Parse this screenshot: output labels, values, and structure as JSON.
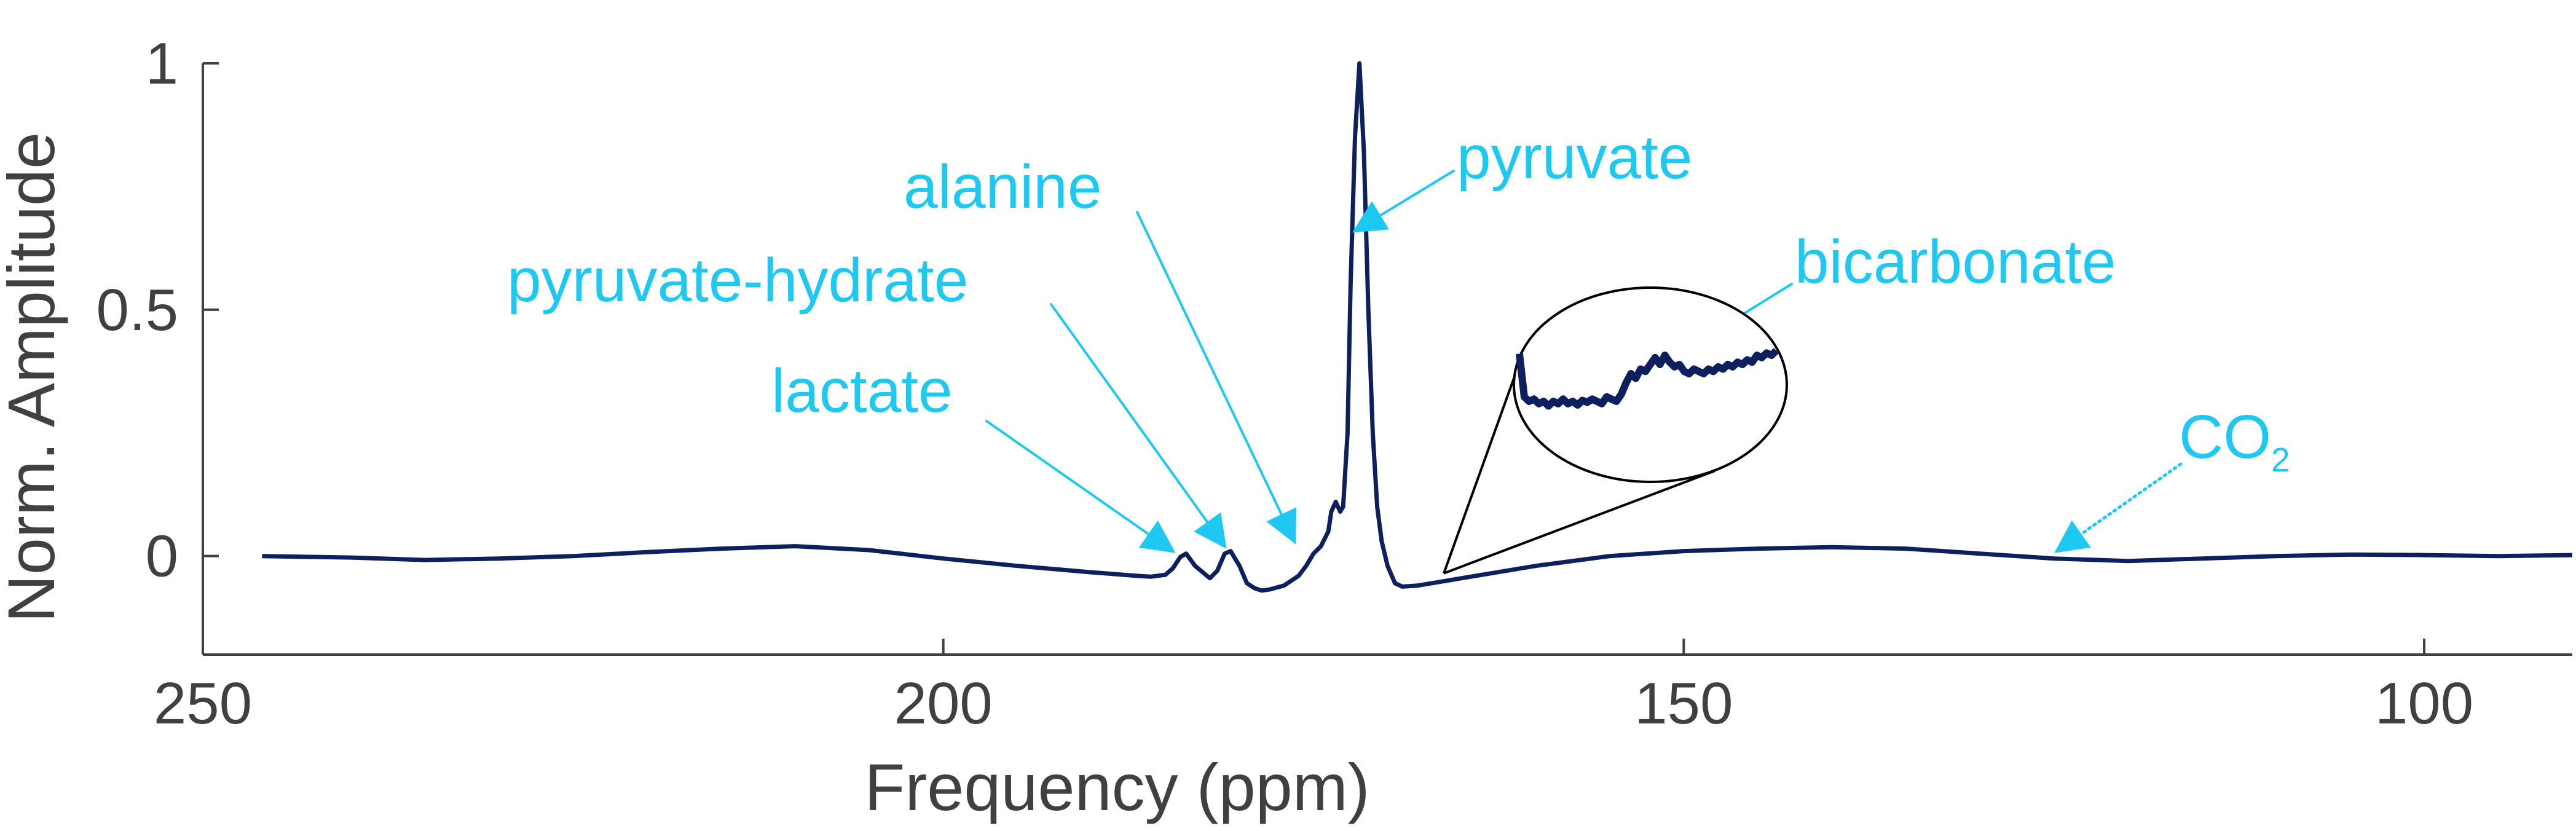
{
  "chart_data": {
    "type": "line",
    "title": "",
    "xlabel": "Frequency (ppm)",
    "ylabel": "Norm. Amplitude",
    "xlim": [
      250,
      90
    ],
    "ylim": [
      -0.2,
      1.0
    ],
    "x_reversed": true,
    "x_ticks": [
      250,
      200,
      150,
      100
    ],
    "x_tick_labels": [
      "250",
      "200",
      "150",
      "100"
    ],
    "y_ticks": [
      0,
      0.5,
      1
    ],
    "y_tick_labels": [
      "0",
      "0.5",
      "1"
    ],
    "grid": false,
    "legend": null,
    "colors": {
      "series": "#0d1f5c",
      "annotation": "#1ec8f0",
      "axis": "#404040",
      "inset": "#000000"
    },
    "series": [
      {
        "name": "spectrum",
        "x": [
          246,
          240,
          235,
          230,
          225,
          220,
          215,
          210,
          205,
          200,
          195,
          190,
          187,
          186,
          185,
          184.5,
          184,
          183.6,
          183,
          182,
          181.5,
          181,
          180.6,
          180,
          179.5,
          179,
          178.5,
          178,
          177,
          176,
          175.5,
          175,
          174.5,
          174,
          173.8,
          173.5,
          173.2,
          173,
          172.7,
          172.5,
          172.2,
          171.9,
          171.6,
          171.3,
          171,
          170.7,
          170.4,
          170,
          169.5,
          169,
          168,
          167,
          166,
          165,
          163,
          160,
          155,
          150,
          145,
          140,
          135,
          130,
          125,
          120,
          115,
          110,
          105,
          100,
          95,
          90
        ],
        "y": [
          0,
          -0.003,
          -0.008,
          -0.005,
          0,
          0.008,
          0.015,
          0.02,
          0.012,
          -0.005,
          -0.02,
          -0.033,
          -0.04,
          -0.042,
          -0.038,
          -0.025,
          -0.002,
          0.005,
          -0.02,
          -0.045,
          -0.03,
          0.005,
          0.01,
          -0.02,
          -0.055,
          -0.065,
          -0.07,
          -0.068,
          -0.06,
          -0.04,
          -0.02,
          0.005,
          0.02,
          0.05,
          0.09,
          0.11,
          0.09,
          0.1,
          0.25,
          0.55,
          0.85,
          1.0,
          0.82,
          0.5,
          0.25,
          0.1,
          0.03,
          -0.02,
          -0.055,
          -0.062,
          -0.06,
          -0.055,
          -0.05,
          -0.045,
          -0.035,
          -0.02,
          0,
          0.01,
          0.015,
          0.018,
          0.015,
          0.005,
          -0.005,
          -0.01,
          -0.005,
          0,
          0.003,
          0.002,
          0,
          0.002
        ]
      }
    ],
    "annotations": [
      {
        "text": "pyruvate",
        "color": "#1ec8f0",
        "points_to_ppm": 172.2,
        "points_to_value": 0.66
      },
      {
        "text": "alanine",
        "color": "#1ec8f0",
        "points_to_ppm": 176.3,
        "points_to_value": 0.03
      },
      {
        "text": "pyruvate-hydrate",
        "color": "#1ec8f0",
        "points_to_ppm": 181.0,
        "points_to_value": 0.02
      },
      {
        "text": "lactate",
        "color": "#1ec8f0",
        "points_to_ppm": 184.5,
        "points_to_value": 0.01
      },
      {
        "text": "bicarbonate",
        "color": "#1ec8f0",
        "points_to_inset": true
      },
      {
        "text": "CO",
        "subscript": "2",
        "color": "#1ec8f0",
        "points_to_ppm": 124.8,
        "points_to_value": 0.01,
        "dotted": true
      }
    ],
    "inset": {
      "description_target": "bicarbonate",
      "source_ppm": 166.2,
      "source_value": -0.035,
      "trace_values": [
        0.05,
        0.03,
        0.02,
        0.025,
        0.015,
        0.02,
        0.01,
        0.02,
        0.015,
        0.025,
        0.015,
        0.02,
        0.012,
        0.022,
        0.018,
        0.025,
        0.02,
        0.015,
        0.03,
        0.025,
        0.02,
        0.035,
        0.06,
        0.08,
        0.07,
        0.09,
        0.085,
        0.1,
        0.115,
        0.1,
        0.12,
        0.105,
        0.095,
        0.1,
        0.085,
        0.08,
        0.09,
        0.085,
        0.08,
        0.09,
        0.085,
        0.095,
        0.09,
        0.1,
        0.095,
        0.105,
        0.1,
        0.11,
        0.105,
        0.12,
        0.115,
        0.125,
        0.12,
        0.13
      ]
    }
  }
}
